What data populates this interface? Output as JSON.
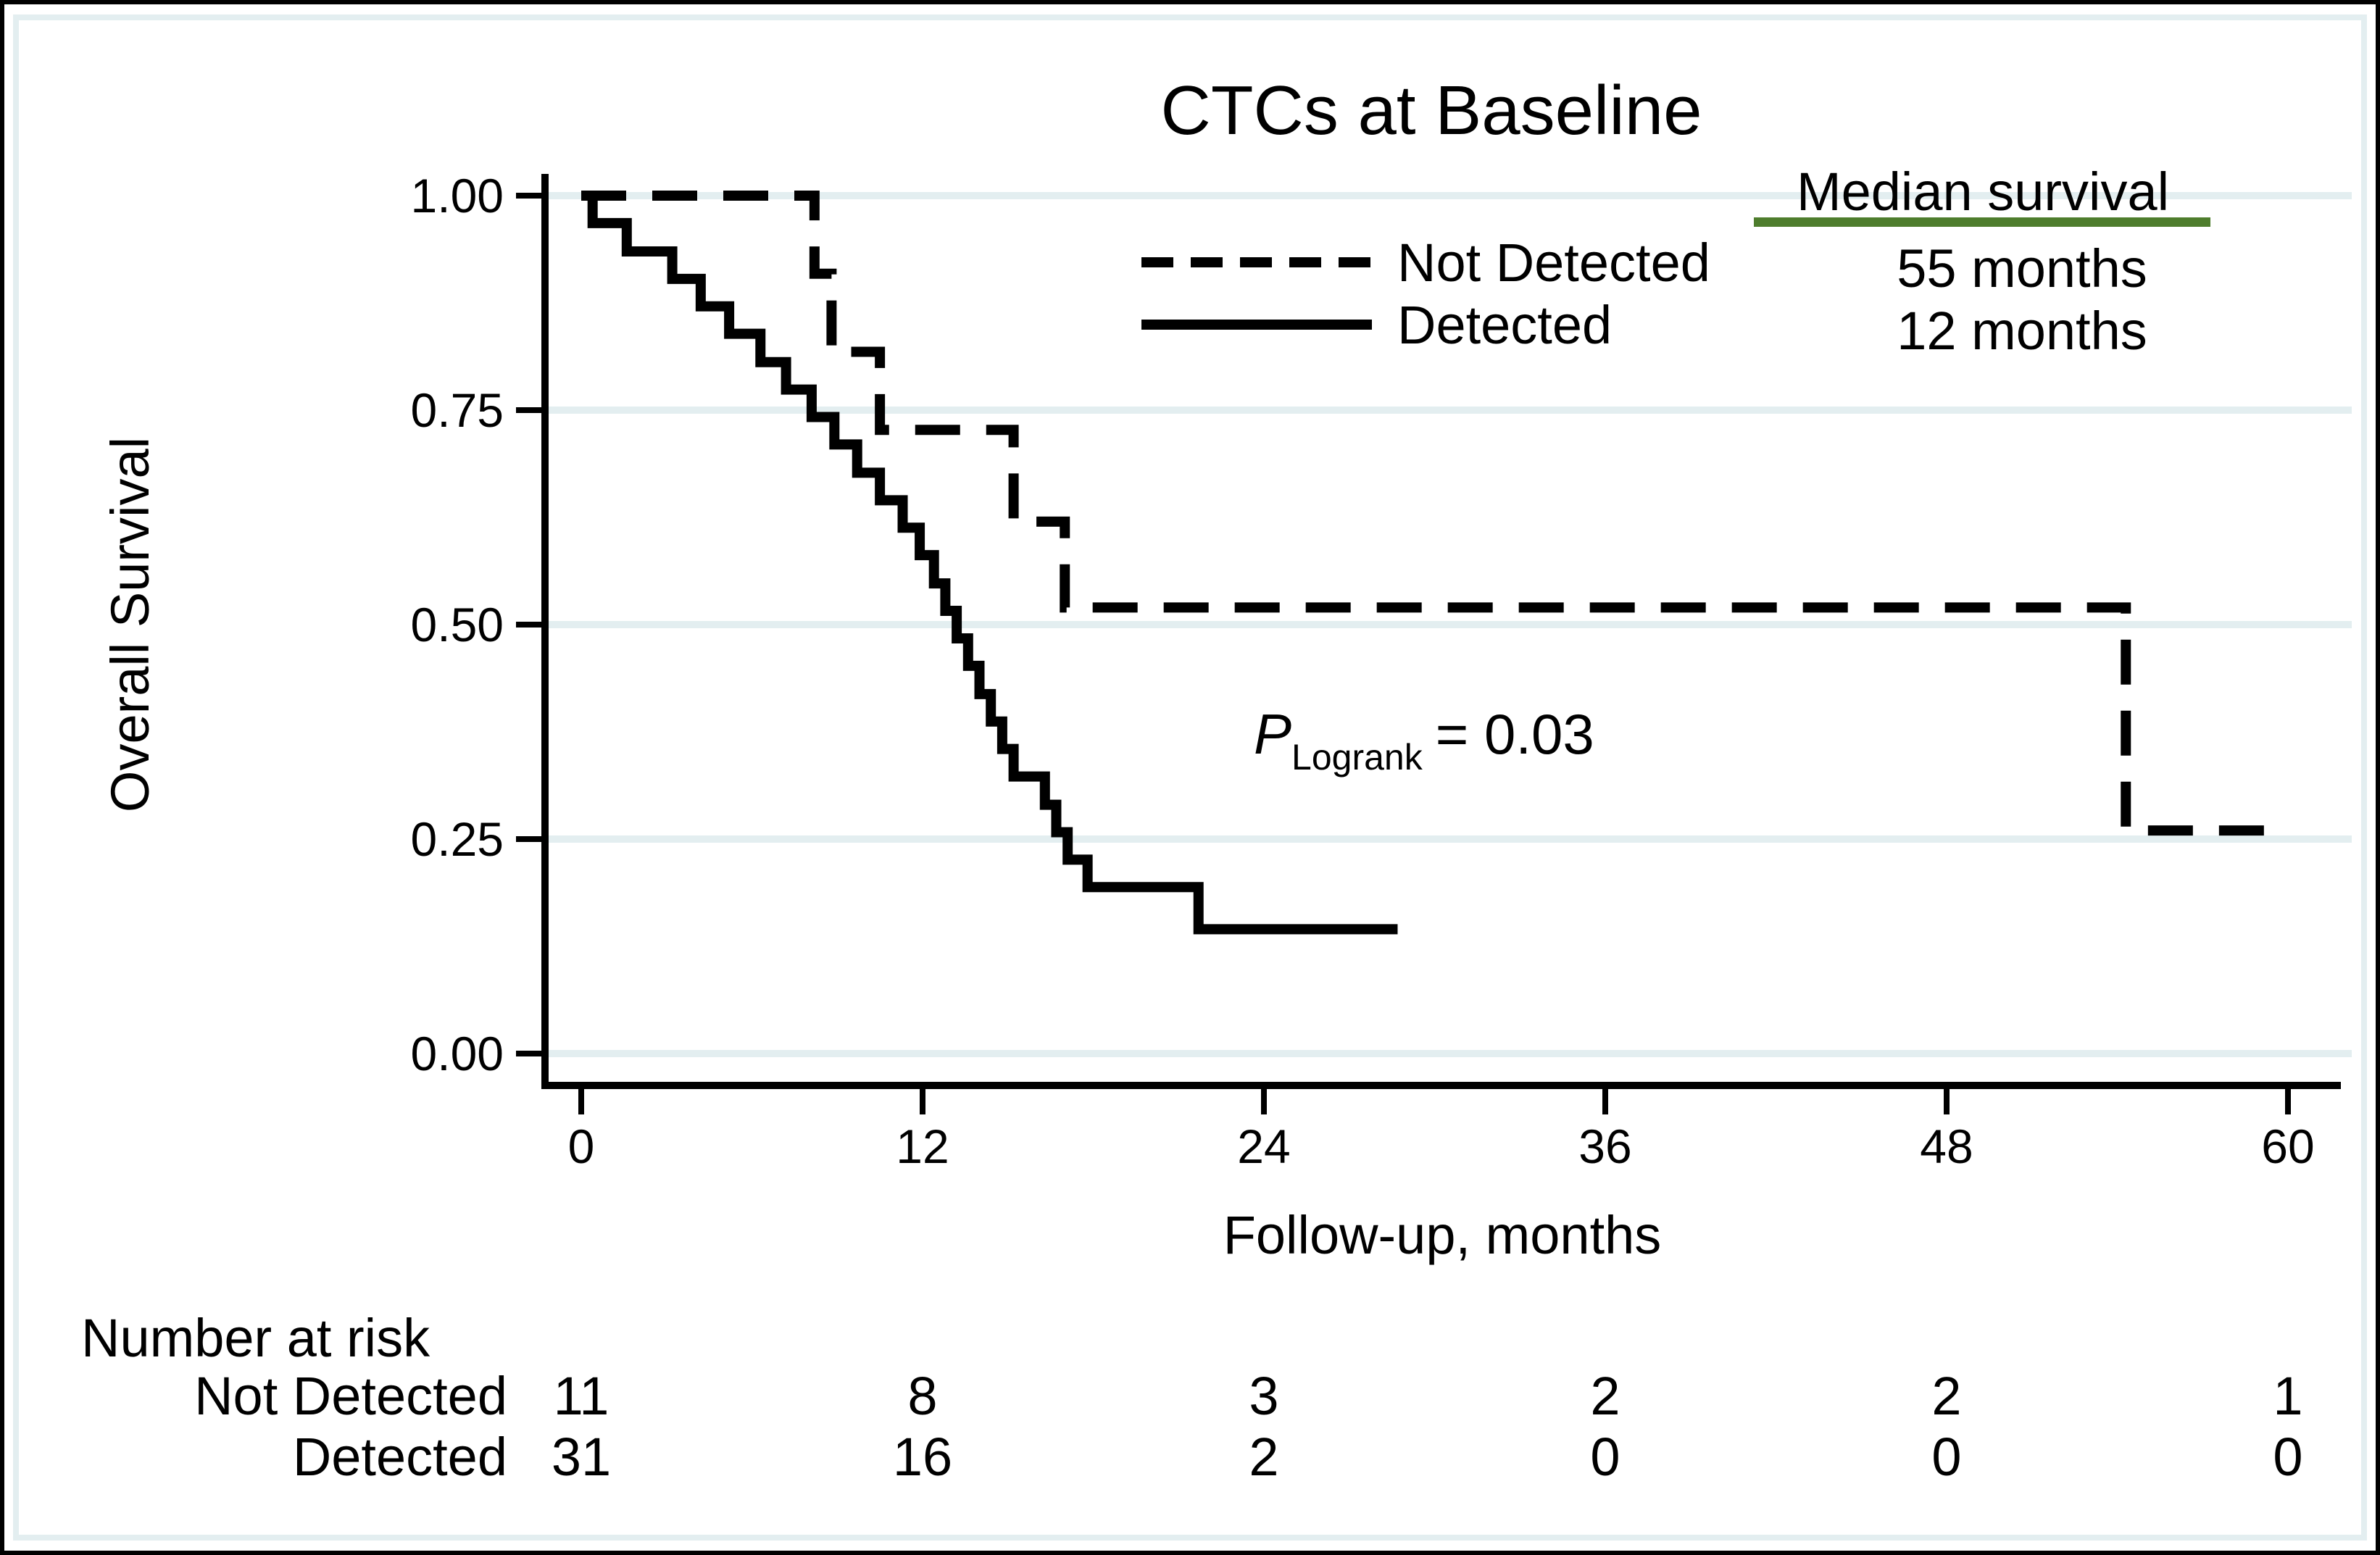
{
  "figure": {
    "title": "CTCs at Baseline",
    "x_axis": {
      "label": "Follow-up, months",
      "ticks": [
        0,
        12,
        24,
        36,
        48,
        60
      ],
      "range": [
        0,
        60
      ]
    },
    "y_axis": {
      "label": "Overall Survival",
      "ticks": [
        {
          "value": 1.0,
          "label": "1.00"
        },
        {
          "value": 0.75,
          "label": "0.75"
        },
        {
          "value": 0.5,
          "label": "0.50"
        },
        {
          "value": 0.25,
          "label": "0.25"
        },
        {
          "value": 0.0,
          "label": "0.00"
        }
      ],
      "range": [
        0,
        1
      ]
    },
    "legend": [
      {
        "label": "Not Detected",
        "style": "dashed"
      },
      {
        "label": "Detected",
        "style": "solid"
      }
    ],
    "median_survival": {
      "header": "Median survival",
      "values": [
        "55 months",
        "12 months"
      ]
    },
    "annotation": {
      "p_prefix": "P",
      "p_sub": "Logrank",
      "p_value": "= 0.03"
    },
    "risk_table": {
      "title": "Number at risk",
      "rows": [
        {
          "label": "Not Detected",
          "counts": [
            "11",
            "8",
            "3",
            "2",
            "2",
            "1"
          ]
        },
        {
          "label": "Detected",
          "counts": [
            "31",
            "16",
            "2",
            "0",
            "0",
            "0"
          ]
        }
      ]
    },
    "colors": {
      "curve": "#000000",
      "gridline": "#e3eef0",
      "median_underline": "#4e7d2d",
      "background": "#ffffff",
      "border": "#000000"
    }
  },
  "chart_data": {
    "type": "line",
    "subtype": "kaplan-meier-step",
    "title": "CTCs at Baseline",
    "xlabel": "Follow-up, months",
    "ylabel": "Overall Survival",
    "xlim": [
      0,
      62
    ],
    "ylim": [
      0,
      1
    ],
    "x_ticks": [
      0,
      12,
      24,
      36,
      48,
      60
    ],
    "y_ticks": [
      0,
      0.25,
      0.5,
      0.75,
      1.0
    ],
    "grid": "horizontal",
    "legend_position": "top-center-inside",
    "p_logrank": 0.03,
    "series": [
      {
        "name": "Not Detected",
        "line": "dashed",
        "median_survival_months": 55,
        "median_survival_label": "55 months",
        "steps": [
          [
            0,
            1.0
          ],
          [
            8.2,
            0.909
          ],
          [
            8.8,
            0.818
          ],
          [
            10.5,
            0.727
          ],
          [
            15.2,
            0.62
          ],
          [
            17.0,
            0.52
          ],
          [
            54.3,
            0.26
          ]
        ],
        "end_month": 59.4
      },
      {
        "name": "Detected",
        "line": "solid",
        "median_survival_months": 12,
        "median_survival_label": "12 months",
        "steps": [
          [
            0,
            1.0
          ],
          [
            0.4,
            0.968
          ],
          [
            1.6,
            0.935
          ],
          [
            3.2,
            0.903
          ],
          [
            4.2,
            0.871
          ],
          [
            5.2,
            0.839
          ],
          [
            6.3,
            0.806
          ],
          [
            7.2,
            0.774
          ],
          [
            8.1,
            0.742
          ],
          [
            8.9,
            0.71
          ],
          [
            9.7,
            0.677
          ],
          [
            10.5,
            0.645
          ],
          [
            11.3,
            0.613
          ],
          [
            11.9,
            0.581
          ],
          [
            12.4,
            0.548
          ],
          [
            12.8,
            0.516
          ],
          [
            13.2,
            0.484
          ],
          [
            13.6,
            0.452
          ],
          [
            14.0,
            0.419
          ],
          [
            14.4,
            0.387
          ],
          [
            14.8,
            0.355
          ],
          [
            15.2,
            0.323
          ],
          [
            16.3,
            0.29
          ],
          [
            16.7,
            0.258
          ],
          [
            17.1,
            0.226
          ],
          [
            17.8,
            0.194
          ],
          [
            21.7,
            0.145
          ]
        ],
        "end_month": 28.7
      }
    ],
    "number_at_risk": {
      "title": "Number at risk",
      "months": [
        0,
        12,
        24,
        36,
        48,
        60
      ],
      "rows": [
        {
          "name": "Not Detected",
          "counts": [
            11,
            8,
            3,
            2,
            2,
            1
          ]
        },
        {
          "name": "Detected",
          "counts": [
            31,
            16,
            2,
            0,
            0,
            0
          ]
        }
      ]
    }
  }
}
